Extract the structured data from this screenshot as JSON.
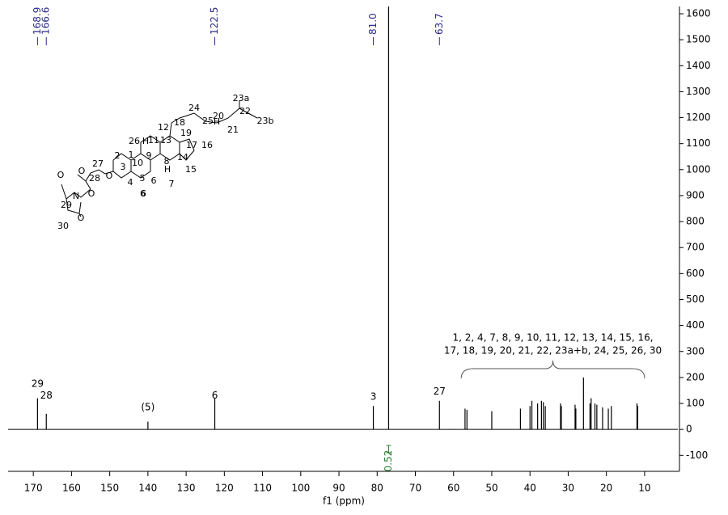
{
  "chart_data": {
    "type": "stem",
    "xlabel": "f1 (ppm)",
    "xlim": [
      176.6,
      1.3
    ],
    "xticks": [
      170,
      160,
      150,
      140,
      130,
      120,
      110,
      100,
      90,
      80,
      70,
      60,
      50,
      40,
      30,
      20,
      10
    ],
    "ylim": [
      -152,
      1628
    ],
    "yticks": [
      -100,
      0,
      100,
      200,
      300,
      400,
      500,
      600,
      700,
      800,
      900,
      1000,
      1100,
      1200,
      1300,
      1400,
      1500,
      1600
    ],
    "color": "#000000",
    "x": [
      168.9,
      166.6,
      140.0,
      122.5,
      81.0,
      77.0,
      63.7,
      57.0,
      56.5,
      50.0,
      42.5,
      40.0,
      39.5,
      38.0,
      37.0,
      36.5,
      36.0,
      32.0,
      31.8,
      28.2,
      28.0,
      26.0,
      24.3,
      24.0,
      23.0,
      22.5,
      21.0,
      19.5,
      18.7,
      12.0,
      11.8
    ],
    "values": [
      120,
      60,
      30,
      120,
      90,
      1700,
      110,
      80,
      75,
      70,
      80,
      90,
      110,
      100,
      110,
      105,
      90,
      100,
      90,
      95,
      80,
      200,
      100,
      120,
      100,
      95,
      85,
      80,
      90,
      100,
      90
    ],
    "peak_picks": [
      168.9,
      166.6,
      122.5,
      {
        "value": 81.0,
        "label": "81.0"
      },
      63.7
    ],
    "peak_pick_color": "#2b2b8c",
    "annotations": [
      {
        "text": "29",
        "x": 168.9,
        "y": 175
      },
      {
        "text": "28",
        "x": 166.6,
        "y": 130
      },
      {
        "text": "(5)",
        "x": 140.0,
        "y": 85
      },
      {
        "text": "6",
        "x": 122.5,
        "y": 130
      },
      {
        "text": "3",
        "x": 81.0,
        "y": 125
      },
      {
        "text": "27",
        "x": 63.7,
        "y": 145
      }
    ],
    "brace": {
      "text": [
        "1, 2, 4, 7, 8, 9, 10, 11, 12, 13, 14, 15, 16,",
        "17, 18, 19, 20, 21, 22, 23a+b, 24, 25, 26, 30"
      ],
      "x": [
        58,
        10
      ]
    },
    "integral": {
      "value": 0.52,
      "x": 77.0,
      "color": "#2e7d32"
    }
  },
  "structure": {
    "labels": [
      "23a",
      "22",
      "23b",
      "24",
      "20",
      "25",
      "H",
      "18",
      "21",
      "12",
      "19",
      "26",
      "H",
      "11",
      "13",
      "17",
      "16",
      "2",
      "9",
      "14",
      "27",
      "1",
      "10",
      "8",
      "15",
      "3",
      "H",
      "5",
      "7",
      "O",
      "28",
      "O",
      "4",
      "6",
      "6",
      "O",
      "N",
      "O",
      "29",
      "30",
      "O"
    ]
  }
}
